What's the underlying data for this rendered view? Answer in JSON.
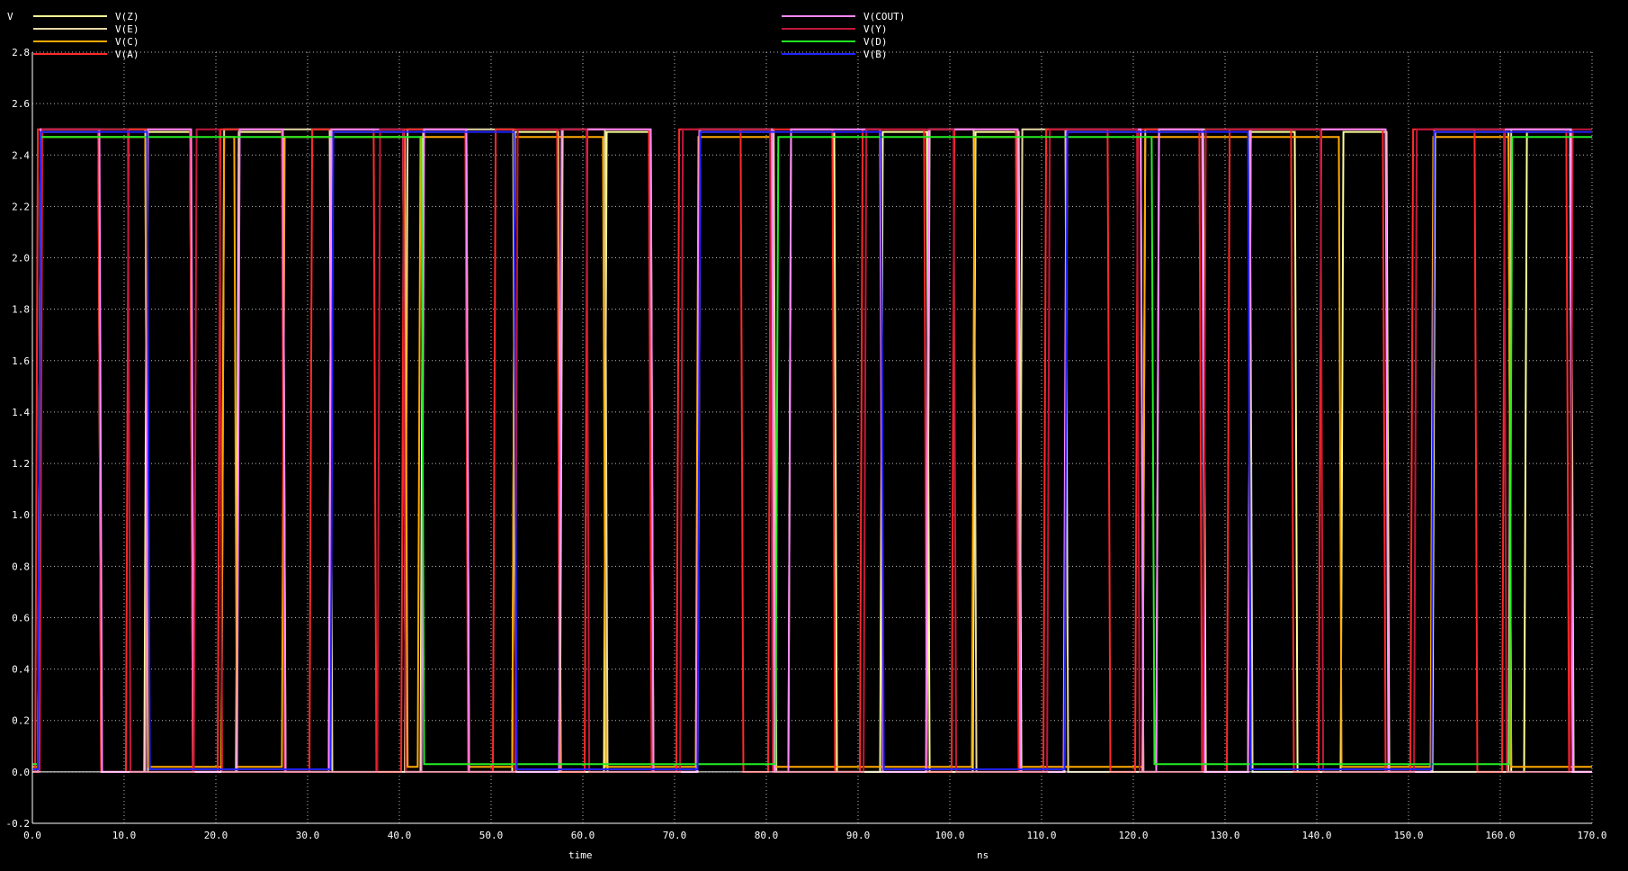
{
  "chart_data": {
    "type": "line",
    "ylabel": "V",
    "xlabel": "time",
    "xunit": "ns",
    "xlim": [
      0,
      170
    ],
    "ylim": [
      -0.2,
      2.8
    ],
    "grid": true,
    "legend_placement": "top",
    "x_ticks": [
      "0.0",
      "10.0",
      "20.0",
      "30.0",
      "40.0",
      "50.0",
      "60.0",
      "70.0",
      "80.0",
      "90.0",
      "100.0",
      "110.0",
      "120.0",
      "130.0",
      "140.0",
      "150.0",
      "160.0",
      "170.0"
    ],
    "y_ticks": [
      "-0.2",
      "0.0",
      "0.2",
      "0.4",
      "0.6",
      "0.8",
      "1.0",
      "1.2",
      "1.4",
      "1.6",
      "1.8",
      "2.0",
      "2.2",
      "2.4",
      "2.6",
      "2.8"
    ],
    "series": [
      {
        "name": "V(Z)",
        "color": "#ffff99",
        "high": 2.49,
        "low": 0.0,
        "transitions": [
          [
            0.6,
            1
          ],
          [
            7.2,
            0
          ],
          [
            12.2,
            1
          ],
          [
            17.2,
            0
          ],
          [
            22.2,
            1
          ],
          [
            27.3,
            0
          ],
          [
            32.3,
            1
          ],
          [
            40.4,
            0
          ],
          [
            42.3,
            1
          ],
          [
            47.3,
            0
          ],
          [
            52.3,
            1
          ],
          [
            57.3,
            0
          ],
          [
            62.3,
            1
          ],
          [
            67.4,
            0
          ],
          [
            72.4,
            1
          ],
          [
            80.6,
            0
          ],
          [
            82.4,
            1
          ],
          [
            87.4,
            0
          ],
          [
            92.4,
            1
          ],
          [
            97.5,
            0
          ],
          [
            102.5,
            1
          ],
          [
            107.5,
            0
          ],
          [
            112.5,
            1
          ],
          [
            120.8,
            0
          ],
          [
            122.5,
            1
          ],
          [
            127.6,
            0
          ],
          [
            132.5,
            1
          ],
          [
            137.6,
            0
          ],
          [
            142.6,
            1
          ],
          [
            147.6,
            0
          ],
          [
            152.6,
            1
          ],
          [
            160.9,
            0
          ],
          [
            162.6,
            1
          ],
          [
            167.6,
            0
          ]
        ]
      },
      {
        "name": "V(E)",
        "color": "#e6d7a5",
        "high": 2.5,
        "low": 0.0,
        "transitions": [
          [
            0.6,
            1
          ],
          [
            12.3,
            0
          ],
          [
            20.6,
            1
          ],
          [
            32.4,
            0
          ],
          [
            40.6,
            1
          ],
          [
            52.4,
            0
          ],
          [
            57.5,
            1
          ],
          [
            62.4,
            0
          ],
          [
            72.5,
            1
          ],
          [
            80.8,
            0
          ],
          [
            97.5,
            1
          ],
          [
            102.6,
            0
          ],
          [
            107.6,
            1
          ],
          [
            112.6,
            0
          ],
          [
            121.0,
            1
          ],
          [
            132.7,
            0
          ],
          [
            160.9,
            1
          ],
          [
            167.7,
            0
          ]
        ]
      },
      {
        "name": "V(C)",
        "color": "#ffaa00",
        "high": 2.47,
        "low": 0.02,
        "transitions": [
          [
            0.6,
            1
          ],
          [
            12.3,
            0
          ],
          [
            20.6,
            1
          ],
          [
            22.0,
            0
          ],
          [
            27.2,
            1
          ],
          [
            40.6,
            0
          ],
          [
            42.0,
            1
          ],
          [
            47.3,
            0
          ],
          [
            52.3,
            1
          ],
          [
            62.2,
            0
          ],
          [
            72.3,
            1
          ],
          [
            80.6,
            0
          ],
          [
            102.4,
            1
          ],
          [
            107.4,
            0
          ],
          [
            121.0,
            1
          ],
          [
            142.4,
            0
          ],
          [
            152.4,
            1
          ],
          [
            160.9,
            0
          ]
        ]
      },
      {
        "name": "V(A)",
        "color": "#ff2a2a",
        "high": 2.5,
        "low": 0.0,
        "transitions": [
          [
            0.3,
            1
          ],
          [
            7.2,
            0
          ],
          [
            10.2,
            1
          ],
          [
            17.2,
            0
          ],
          [
            20.2,
            1
          ],
          [
            27.2,
            0
          ],
          [
            30.2,
            1
          ],
          [
            37.2,
            0
          ],
          [
            40.2,
            1
          ],
          [
            47.2,
            0
          ],
          [
            50.2,
            1
          ],
          [
            57.2,
            0
          ],
          [
            60.2,
            1
          ],
          [
            67.2,
            0
          ],
          [
            70.2,
            1
          ],
          [
            77.2,
            0
          ],
          [
            80.2,
            1
          ],
          [
            87.2,
            0
          ],
          [
            90.2,
            1
          ],
          [
            97.2,
            0
          ],
          [
            100.2,
            1
          ],
          [
            107.2,
            0
          ],
          [
            110.2,
            1
          ],
          [
            117.2,
            0
          ],
          [
            120.2,
            1
          ],
          [
            127.2,
            0
          ],
          [
            130.2,
            1
          ],
          [
            137.2,
            0
          ],
          [
            140.2,
            1
          ],
          [
            147.2,
            0
          ],
          [
            150.2,
            1
          ],
          [
            157.2,
            0
          ],
          [
            160.2,
            1
          ],
          [
            167.2,
            0
          ]
        ]
      },
      {
        "name": "V(COUT)",
        "color": "#ff88ff",
        "high": 2.5,
        "low": 0.0,
        "transitions": [
          [
            0.6,
            1
          ],
          [
            7.3,
            0
          ],
          [
            12.3,
            1
          ],
          [
            17.3,
            0
          ],
          [
            22.3,
            1
          ],
          [
            27.3,
            0
          ],
          [
            32.3,
            1
          ],
          [
            40.4,
            0
          ],
          [
            42.4,
            1
          ],
          [
            47.3,
            0
          ],
          [
            57.4,
            1
          ],
          [
            67.4,
            0
          ],
          [
            72.4,
            1
          ],
          [
            80.6,
            0
          ],
          [
            82.4,
            1
          ],
          [
            92.4,
            0
          ],
          [
            97.4,
            1
          ],
          [
            107.4,
            0
          ],
          [
            112.4,
            1
          ],
          [
            120.8,
            0
          ],
          [
            122.5,
            1
          ],
          [
            127.5,
            0
          ],
          [
            132.5,
            1
          ],
          [
            147.5,
            0
          ],
          [
            152.5,
            1
          ],
          [
            167.6,
            0
          ]
        ]
      },
      {
        "name": "V(Y)",
        "color": "#c0183a",
        "high": 2.5,
        "low": 0.0,
        "transitions": [
          [
            0.8,
            1
          ],
          [
            10.4,
            0
          ],
          [
            17.6,
            1
          ],
          [
            20.4,
            0
          ],
          [
            37.6,
            1
          ],
          [
            40.4,
            0
          ],
          [
            52.6,
            1
          ],
          [
            60.4,
            0
          ],
          [
            70.6,
            1
          ],
          [
            80.4,
            0
          ],
          [
            90.6,
            1
          ],
          [
            100.4,
            0
          ],
          [
            110.6,
            1
          ],
          [
            120.4,
            0
          ],
          [
            127.6,
            1
          ],
          [
            140.4,
            0
          ],
          [
            150.6,
            1
          ],
          [
            160.4,
            0
          ],
          [
            167.6,
            1
          ]
        ]
      },
      {
        "name": "V(D)",
        "color": "#22ee22",
        "high": 2.47,
        "low": 0.03,
        "transitions": [
          [
            0.6,
            1
          ],
          [
            42.4,
            0
          ],
          [
            81.0,
            1
          ],
          [
            122.0,
            0
          ],
          [
            161.0,
            1
          ]
        ]
      },
      {
        "name": "V(B)",
        "color": "#2222ff",
        "high": 2.49,
        "low": 0.01,
        "transitions": [
          [
            0.6,
            1
          ],
          [
            12.5,
            0
          ],
          [
            32.5,
            1
          ],
          [
            52.5,
            0
          ],
          [
            72.5,
            1
          ],
          [
            92.5,
            0
          ],
          [
            112.5,
            1
          ],
          [
            132.5,
            0
          ],
          [
            152.5,
            1
          ]
        ]
      }
    ]
  }
}
